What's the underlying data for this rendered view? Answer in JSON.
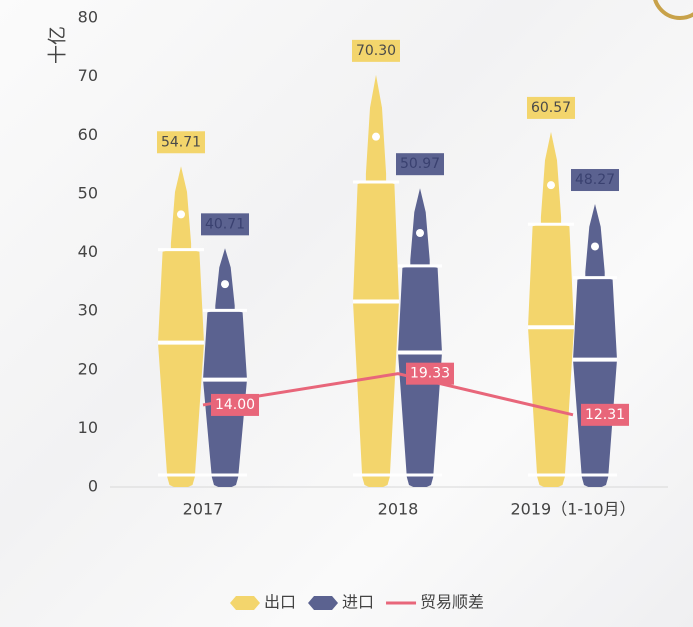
{
  "chart_data": {
    "type": "pen-bar-line",
    "y_label": "十亿",
    "categories": [
      "2017",
      "2018",
      "2019（1-10月）"
    ],
    "series": [
      {
        "name": "出口",
        "color": "#f3d56c",
        "type": "bar",
        "values": [
          54.71,
          70.3,
          60.57
        ],
        "value_labels": [
          "54.71",
          "70.30",
          "60.57"
        ]
      },
      {
        "name": "进口",
        "color": "#5b6290",
        "type": "bar",
        "values": [
          40.71,
          50.97,
          48.27
        ],
        "value_labels": [
          "40.71",
          "50.97",
          "48.27"
        ]
      },
      {
        "name": "贸易顺差",
        "color": "#e8667a",
        "type": "line",
        "values": [
          14.0,
          19.33,
          12.31
        ],
        "value_labels": [
          "14.00",
          "19.33",
          "12.31"
        ]
      }
    ],
    "ylim": [
      0,
      80
    ],
    "yticks": [
      0,
      10,
      20,
      30,
      40,
      50,
      60,
      70,
      80
    ]
  }
}
